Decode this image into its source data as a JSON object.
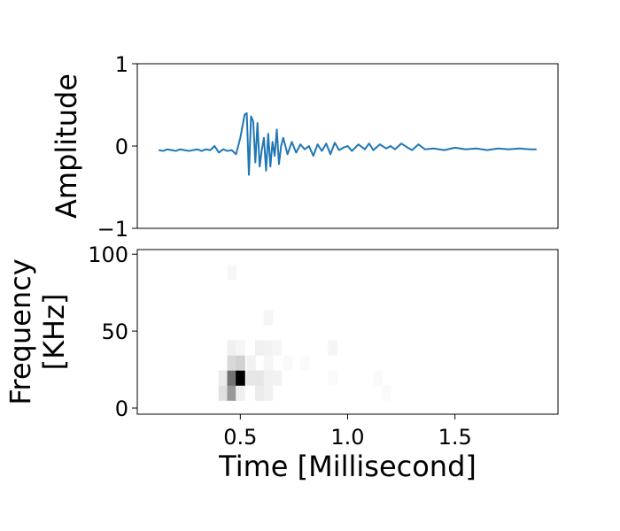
{
  "chart_data": [
    {
      "type": "line",
      "title": "",
      "xlabel": "",
      "ylabel": "Amplitude",
      "xlim": [
        0.02,
        1.98
      ],
      "ylim": [
        -1,
        1
      ],
      "yticks": [
        -1,
        0,
        1
      ],
      "ytick_labels": [
        "−1",
        "0",
        "1"
      ],
      "xticks": [],
      "line_color": "#1f77b4",
      "grid": false,
      "series": [
        {
          "x": [
            0.12,
            0.14,
            0.16,
            0.18,
            0.2,
            0.22,
            0.24,
            0.26,
            0.28,
            0.3,
            0.32,
            0.34,
            0.36,
            0.38,
            0.4,
            0.42,
            0.44,
            0.46,
            0.48,
            0.5,
            0.52,
            0.53,
            0.54,
            0.55,
            0.56,
            0.57,
            0.58,
            0.59,
            0.6,
            0.61,
            0.62,
            0.63,
            0.64,
            0.65,
            0.66,
            0.67,
            0.68,
            0.69,
            0.7,
            0.72,
            0.74,
            0.76,
            0.78,
            0.8,
            0.82,
            0.84,
            0.86,
            0.88,
            0.9,
            0.92,
            0.94,
            0.96,
            0.98,
            1.0,
            1.02,
            1.05,
            1.08,
            1.1,
            1.12,
            1.15,
            1.18,
            1.2,
            1.22,
            1.25,
            1.28,
            1.3,
            1.33,
            1.36,
            1.4,
            1.45,
            1.5,
            1.55,
            1.6,
            1.65,
            1.7,
            1.75,
            1.8,
            1.85,
            1.88
          ],
          "y": [
            -0.05,
            -0.06,
            -0.04,
            -0.05,
            -0.06,
            -0.04,
            -0.05,
            -0.06,
            -0.05,
            -0.04,
            -0.06,
            -0.04,
            -0.05,
            0.0,
            -0.08,
            -0.04,
            -0.06,
            -0.05,
            -0.1,
            0.1,
            0.38,
            0.4,
            -0.35,
            0.36,
            0.3,
            -0.2,
            0.28,
            -0.25,
            -0.05,
            0.1,
            -0.3,
            0.15,
            -0.25,
            0.05,
            -0.12,
            0.2,
            -0.22,
            0.0,
            0.1,
            -0.1,
            0.05,
            -0.08,
            0.02,
            -0.04,
            0.0,
            -0.12,
            0.02,
            -0.06,
            0.03,
            -0.1,
            0.04,
            -0.05,
            -0.02,
            0.0,
            -0.06,
            0.02,
            -0.04,
            0.03,
            -0.05,
            0.02,
            -0.03,
            0.0,
            -0.04,
            0.03,
            -0.02,
            -0.05,
            0.02,
            -0.04,
            -0.03,
            -0.05,
            -0.02,
            -0.04,
            -0.03,
            -0.05,
            -0.03,
            -0.04,
            -0.03,
            -0.04,
            -0.04
          ]
        }
      ]
    },
    {
      "type": "heatmap",
      "title": "",
      "xlabel": "Time [Millisecond]",
      "ylabel_lines": [
        "Frequency",
        "[KHz]"
      ],
      "xlim": [
        0.02,
        1.98
      ],
      "ylim": [
        -4,
        103
      ],
      "xticks": [
        0.5,
        1.0,
        1.5
      ],
      "xtick_labels": [
        "0.5",
        "1.0",
        "1.5"
      ],
      "yticks": [
        0,
        50,
        100
      ],
      "ytick_labels": [
        "0",
        "50",
        "100"
      ],
      "colormap": "greys",
      "time_bin_width": 0.0425,
      "freq_bin_height": 9.8,
      "cells": [
        {
          "t": 0.42,
          "f": 9.8,
          "v": 0.12
        },
        {
          "t": 0.42,
          "f": 19.6,
          "v": 0.08
        },
        {
          "t": 0.46,
          "f": 9.8,
          "v": 0.4
        },
        {
          "t": 0.46,
          "f": 19.6,
          "v": 0.55
        },
        {
          "t": 0.46,
          "f": 29.4,
          "v": 0.15
        },
        {
          "t": 0.46,
          "f": 39.2,
          "v": 0.06
        },
        {
          "t": 0.46,
          "f": 88.2,
          "v": 0.03
        },
        {
          "t": 0.5,
          "f": 9.8,
          "v": 0.06
        },
        {
          "t": 0.5,
          "f": 19.6,
          "v": 1.0
        },
        {
          "t": 0.5,
          "f": 29.4,
          "v": 0.18
        },
        {
          "t": 0.5,
          "f": 39.2,
          "v": 0.04
        },
        {
          "t": 0.55,
          "f": 19.6,
          "v": 0.1
        },
        {
          "t": 0.55,
          "f": 29.4,
          "v": 0.05
        },
        {
          "t": 0.59,
          "f": 9.8,
          "v": 0.08
        },
        {
          "t": 0.59,
          "f": 19.6,
          "v": 0.1
        },
        {
          "t": 0.59,
          "f": 39.2,
          "v": 0.06
        },
        {
          "t": 0.63,
          "f": 9.8,
          "v": 0.06
        },
        {
          "t": 0.63,
          "f": 19.6,
          "v": 0.06
        },
        {
          "t": 0.63,
          "f": 29.4,
          "v": 0.04
        },
        {
          "t": 0.63,
          "f": 39.2,
          "v": 0.05
        },
        {
          "t": 0.63,
          "f": 58.8,
          "v": 0.04
        },
        {
          "t": 0.67,
          "f": 19.6,
          "v": 0.05
        },
        {
          "t": 0.67,
          "f": 39.2,
          "v": 0.04
        },
        {
          "t": 0.72,
          "f": 29.4,
          "v": 0.02
        },
        {
          "t": 0.8,
          "f": 29.4,
          "v": 0.02
        },
        {
          "t": 0.93,
          "f": 39.2,
          "v": 0.04
        },
        {
          "t": 0.93,
          "f": 19.6,
          "v": 0.02
        },
        {
          "t": 1.14,
          "f": 19.6,
          "v": 0.02
        },
        {
          "t": 1.18,
          "f": 9.8,
          "v": 0.02
        }
      ]
    }
  ]
}
